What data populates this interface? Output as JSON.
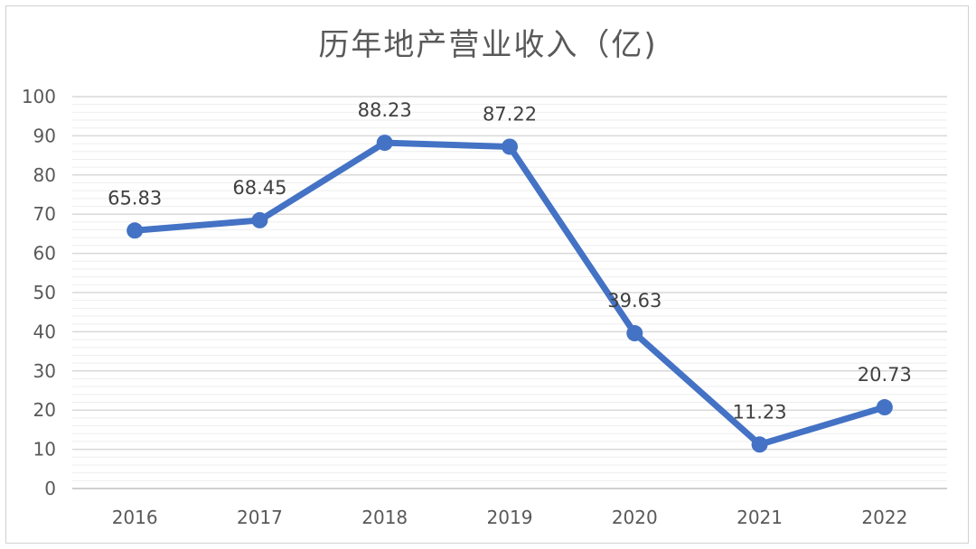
{
  "chart_data": {
    "type": "line",
    "title": "历年地产营业收入（亿)",
    "categories": [
      "2016",
      "2017",
      "2018",
      "2019",
      "2020",
      "2021",
      "2022"
    ],
    "series": [
      {
        "values": [
          65.83,
          68.45,
          88.23,
          87.22,
          39.63,
          11.23,
          20.73
        ]
      }
    ],
    "data_labels": [
      "65.83",
      "68.45",
      "88.23",
      "87.22",
      "39.63",
      "11.23",
      "20.73"
    ],
    "ylim": [
      0,
      100
    ],
    "y_ticks": [
      "0",
      "10",
      "20",
      "30",
      "40",
      "50",
      "60",
      "70",
      "80",
      "90",
      "100"
    ],
    "xlabel": "",
    "ylabel": "",
    "grid": true,
    "legend": "none",
    "colors": {
      "series": "#4472C4",
      "grid": "#d9d9d9",
      "text": "#595959"
    }
  }
}
